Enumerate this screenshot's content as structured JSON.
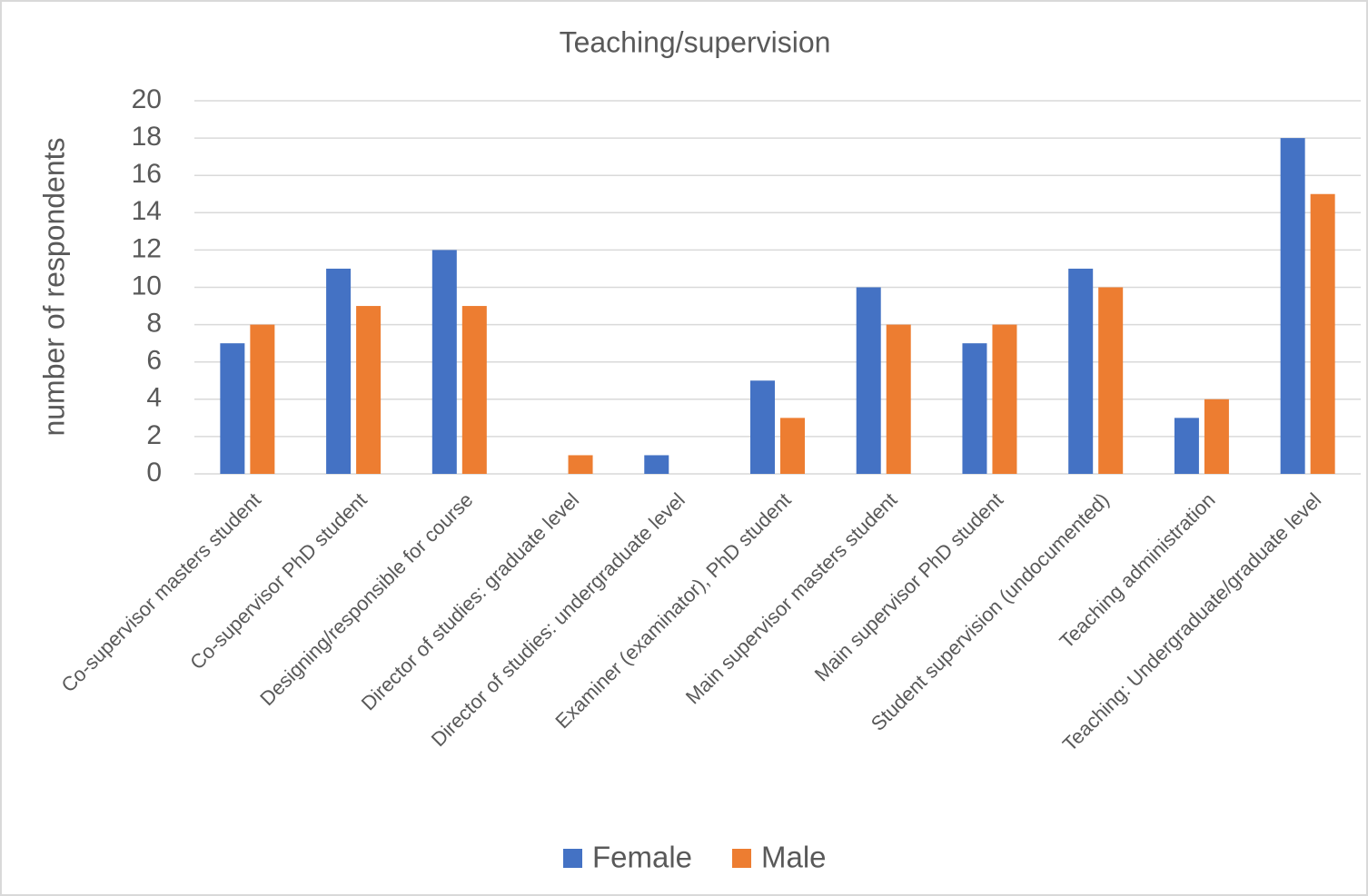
{
  "chart_data": {
    "type": "bar",
    "title": "Teaching/supervision",
    "y_label": "number of respondents",
    "categories": [
      "Co-supervisor masters student",
      "Co-supervisor PhD student",
      "Designing/responsible for course",
      "Director of studies: graduate level",
      "Director of studies: undergraduate level",
      "Examiner (examinator), PhD student",
      "Main supervisor masters student",
      "Main supervisor PhD student",
      "Student supervision (undocumented)",
      "Teaching administration",
      "Teaching: Undergraduate/graduate level"
    ],
    "series": [
      {
        "name": "Female",
        "color": "#4472c4",
        "values": [
          7,
          11,
          12,
          0,
          1,
          5,
          10,
          7,
          11,
          3,
          18
        ]
      },
      {
        "name": "Male",
        "color": "#ed7d31",
        "values": [
          8,
          9,
          9,
          1,
          0,
          3,
          8,
          8,
          10,
          4,
          15
        ]
      }
    ],
    "ylim": [
      0,
      20
    ],
    "yticks": [
      0,
      2,
      4,
      6,
      8,
      10,
      12,
      14,
      16,
      18,
      20
    ],
    "grid": true,
    "legend": "bottom"
  }
}
